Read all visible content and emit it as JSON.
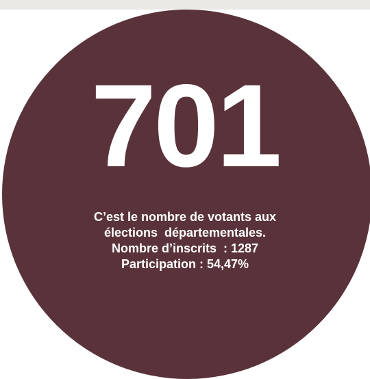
{
  "stat": {
    "value": "701",
    "lines": [
      "C’est le nombre de votants aux",
      "élections  départementales.",
      "Nombre d’inscrits  : 1287",
      "Participation : 54,47%"
    ]
  },
  "colors": {
    "circle": "#5a333a",
    "text": "#ffffff",
    "top_band": "#ebe9e6",
    "background": "#ffffff"
  }
}
